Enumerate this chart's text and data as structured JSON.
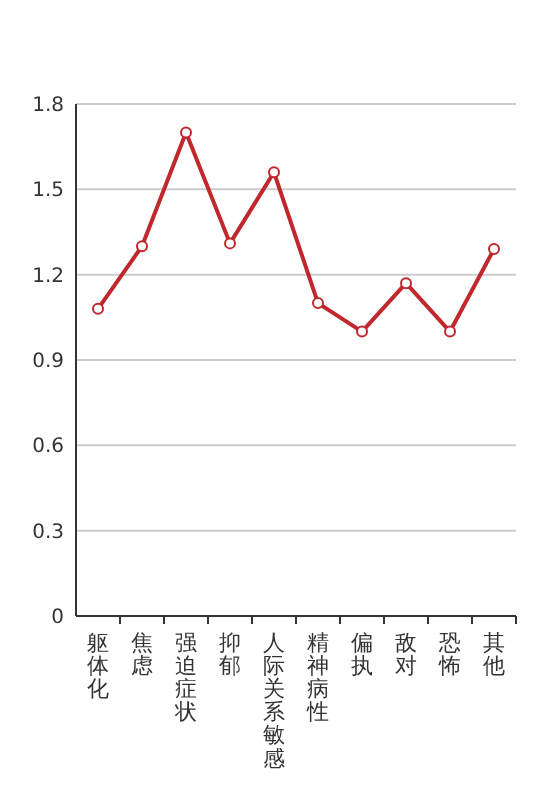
{
  "chart_data": {
    "type": "line",
    "categories": [
      "躯体化",
      "焦虑",
      "强迫症状",
      "抑郁",
      "人际关系敏感",
      "精神病性",
      "偏执",
      "敌对",
      "恐怖",
      "其他"
    ],
    "series": [
      {
        "color": "#c0282d",
        "values": [
          1.08,
          1.3,
          1.7,
          1.31,
          1.56,
          1.1,
          1.0,
          1.17,
          1.0,
          1.29
        ]
      }
    ],
    "ylim": [
      0,
      1.8
    ],
    "yticks": [
      0,
      {
        "value": 0.3,
        "label": "0.3"
      },
      {
        "value": 0.6,
        "label": "0.6"
      },
      {
        "value": 0.9,
        "label": "0.9"
      },
      {
        "value": 1.2,
        "label": "1.2"
      },
      {
        "value": 1.5,
        "label": "1.5"
      },
      {
        "value": 1.8,
        "label": "1.8"
      }
    ],
    "grid": "y",
    "marker": "circle",
    "line_style": "solid"
  }
}
